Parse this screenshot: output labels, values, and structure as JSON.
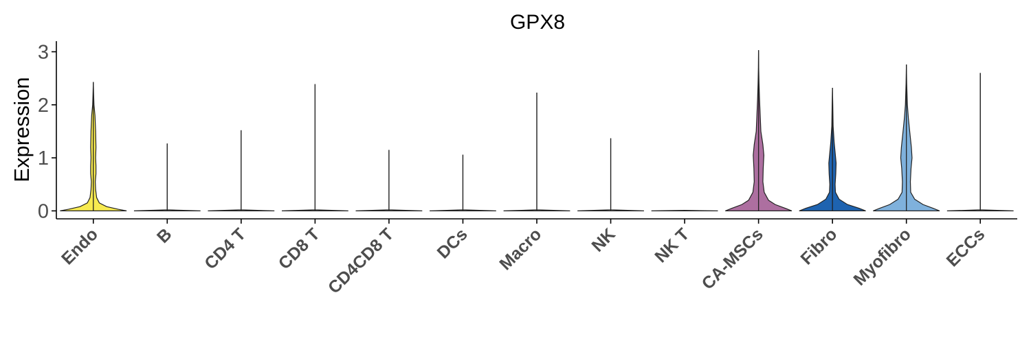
{
  "chart_data": {
    "type": "violin",
    "title": "GPX8",
    "xlabel": "",
    "ylabel": "Expression",
    "ylim": [
      -0.15,
      3.2
    ],
    "yticks": [
      0,
      1,
      2,
      3
    ],
    "grid": false,
    "legend": "none",
    "categories": [
      "Endo",
      "B",
      "CD4 T",
      "CD8 T",
      "CD4CD8 T",
      "DCs",
      "Macro",
      "NK",
      "NK T",
      "CA-MSCs",
      "Fibro",
      "Myofibro",
      "ECCs"
    ],
    "colors": [
      "#F7EA50",
      "#FFFFFF",
      "#FFFFFF",
      "#FFFFFF",
      "#FFFFFF",
      "#FFFFFF",
      "#FFFFFF",
      "#FFFFFF",
      "#FFFFFF",
      "#AD6FA0",
      "#1E63B0",
      "#7FB1DC",
      "#FFFFFF"
    ],
    "max": [
      2.43,
      1.27,
      1.52,
      2.39,
      1.15,
      1.06,
      2.23,
      1.37,
      0.0,
      3.03,
      2.32,
      2.76,
      2.6
    ],
    "density": [
      [
        [
          0,
          1.0
        ],
        [
          0.03,
          0.75
        ],
        [
          0.08,
          0.4
        ],
        [
          0.15,
          0.18
        ],
        [
          0.25,
          0.1
        ],
        [
          0.4,
          0.07
        ],
        [
          0.55,
          0.06
        ],
        [
          0.7,
          0.08
        ],
        [
          0.85,
          0.08
        ],
        [
          1.0,
          0.07
        ],
        [
          1.2,
          0.08
        ],
        [
          1.5,
          0.07
        ],
        [
          1.8,
          0.05
        ],
        [
          2.0,
          0.02
        ],
        [
          2.2,
          0.01
        ],
        [
          2.43,
          0
        ]
      ],
      [
        [
          0,
          1.0
        ],
        [
          0.02,
          0.0
        ],
        [
          1.27,
          0
        ]
      ],
      [
        [
          0,
          1.0
        ],
        [
          0.02,
          0.0
        ],
        [
          1.52,
          0
        ]
      ],
      [
        [
          0,
          1.0
        ],
        [
          0.02,
          0.0
        ],
        [
          2.39,
          0
        ]
      ],
      [
        [
          0,
          1.0
        ],
        [
          0.02,
          0.0
        ],
        [
          1.15,
          0
        ]
      ],
      [
        [
          0,
          1.0
        ],
        [
          0.02,
          0.0
        ],
        [
          1.06,
          0
        ]
      ],
      [
        [
          0,
          1.0
        ],
        [
          0.02,
          0.0
        ],
        [
          2.23,
          0
        ]
      ],
      [
        [
          0,
          1.0
        ],
        [
          0.02,
          0.0
        ],
        [
          1.37,
          0
        ]
      ],
      [
        [
          0,
          1.0
        ],
        [
          0.01,
          0.0
        ]
      ],
      [
        [
          0,
          1.0
        ],
        [
          0.05,
          0.8
        ],
        [
          0.12,
          0.5
        ],
        [
          0.2,
          0.3
        ],
        [
          0.35,
          0.17
        ],
        [
          0.55,
          0.13
        ],
        [
          0.8,
          0.14
        ],
        [
          1.05,
          0.16
        ],
        [
          1.25,
          0.13
        ],
        [
          1.5,
          0.07
        ],
        [
          1.8,
          0.05
        ],
        [
          2.1,
          0.03
        ],
        [
          2.4,
          0.015
        ],
        [
          2.7,
          0.005
        ],
        [
          3.03,
          0
        ]
      ],
      [
        [
          0,
          1.0
        ],
        [
          0.05,
          0.8
        ],
        [
          0.12,
          0.45
        ],
        [
          0.22,
          0.2
        ],
        [
          0.35,
          0.09
        ],
        [
          0.5,
          0.08
        ],
        [
          0.7,
          0.1
        ],
        [
          0.9,
          0.11
        ],
        [
          1.1,
          0.08
        ],
        [
          1.3,
          0.05
        ],
        [
          1.6,
          0.02
        ],
        [
          2.0,
          0.01
        ],
        [
          2.32,
          0
        ]
      ],
      [
        [
          0,
          1.0
        ],
        [
          0.05,
          0.8
        ],
        [
          0.12,
          0.5
        ],
        [
          0.22,
          0.25
        ],
        [
          0.35,
          0.13
        ],
        [
          0.55,
          0.12
        ],
        [
          0.8,
          0.14
        ],
        [
          1.0,
          0.17
        ],
        [
          1.2,
          0.15
        ],
        [
          1.5,
          0.1
        ],
        [
          1.75,
          0.06
        ],
        [
          2.0,
          0.03
        ],
        [
          2.4,
          0.01
        ],
        [
          2.76,
          0
        ]
      ],
      [
        [
          0,
          1.0
        ],
        [
          0.02,
          0.0
        ],
        [
          2.6,
          0
        ]
      ]
    ]
  }
}
